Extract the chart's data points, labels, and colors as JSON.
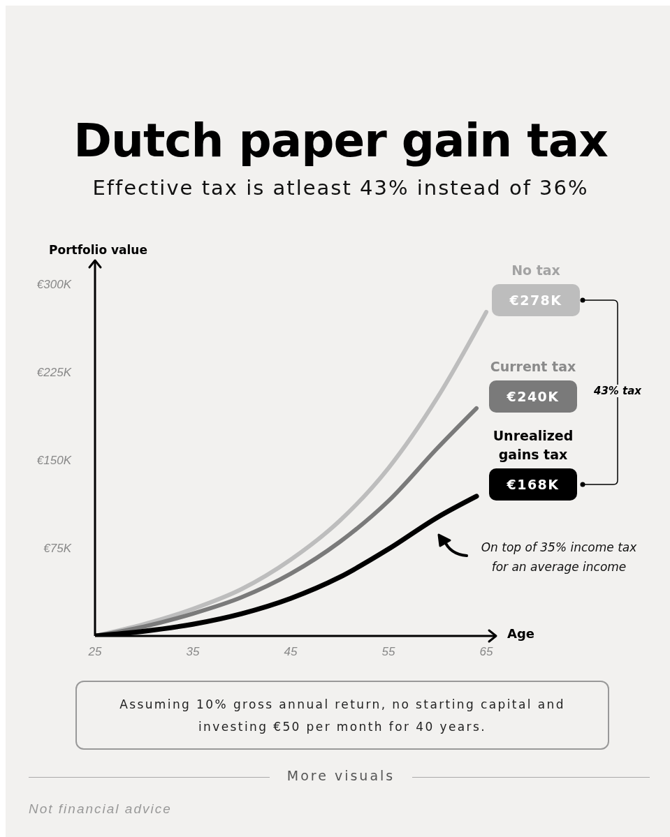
{
  "chart_data": {
    "type": "line",
    "title": "Dutch paper gain tax",
    "subtitle": "Effective tax is atleast 43% instead of 36%",
    "xlabel": "Age",
    "ylabel": "Portfolio value",
    "xlim": [
      25,
      66
    ],
    "xticks": [
      25,
      35,
      45,
      55,
      65
    ],
    "ylim": [
      0,
      320
    ],
    "yticks": [
      {
        "value": 75,
        "label": "€75K"
      },
      {
        "value": 150,
        "label": "€150K"
      },
      {
        "value": 225,
        "label": "€225K"
      },
      {
        "value": 300,
        "label": "€300K"
      }
    ],
    "grid": false,
    "legend": false,
    "marker": "none",
    "line_style": "solid",
    "series": [
      {
        "name": "No tax",
        "color": "#bdbdbd",
        "x": [
          25,
          30,
          35,
          40,
          45,
          50,
          55,
          60,
          65
        ],
        "values": [
          0,
          10,
          23,
          40,
          65,
          98,
          143,
          203,
          276
        ]
      },
      {
        "name": "Current tax",
        "color": "#7a7a7a",
        "x": [
          25,
          30,
          35,
          40,
          45,
          50,
          55,
          60,
          64
        ],
        "values": [
          0,
          8,
          19,
          33,
          53,
          80,
          115,
          160,
          194
        ]
      },
      {
        "name": "Unrealized gains tax",
        "color": "#000000",
        "x": [
          25,
          30,
          35,
          40,
          45,
          50,
          55,
          60,
          64
        ],
        "values": [
          0,
          4,
          10,
          19,
          32,
          50,
          74,
          101,
          119
        ]
      }
    ],
    "annotations": [
      "€278K",
      "€240K",
      "€168K",
      "43% tax",
      "On top of 35% income tax for an average income",
      "Assuming 10% gross annual return, no starting capital and investing €50 per month for 40 years.",
      "More visuals",
      "Not financial advice"
    ]
  }
}
